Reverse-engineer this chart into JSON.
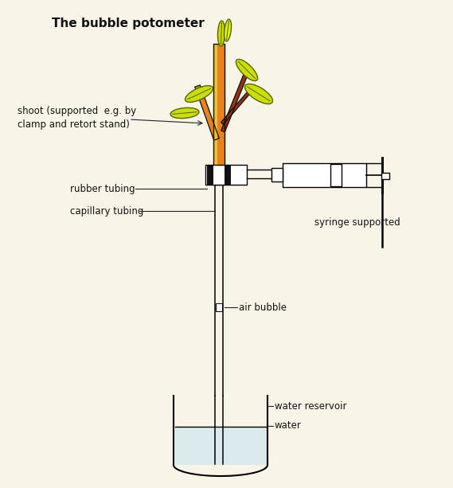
{
  "title": "The bubble potometer",
  "bg_color": "#f8f5e8",
  "labels": {
    "shoot": "shoot (supported  e.g. by\nclamp and retort stand)",
    "rubber_tubing": "rubber tubing",
    "capillary_tubing": "capillary tubing",
    "air_bubble": "air bubble",
    "water_reservoir": "water reservoir",
    "water": "water",
    "syringe": "syringe supported"
  },
  "colors": {
    "stem_orange": "#E8821A",
    "stem_yellow": "#F0C030",
    "stem_dark": "#C06010",
    "leaf_yellow_green": "#CCDD00",
    "leaf_outline": "#556600",
    "branch_brown": "#963210",
    "black": "#111111",
    "water_blue": "#d0e8f0",
    "bg": "#f8f5e8"
  }
}
